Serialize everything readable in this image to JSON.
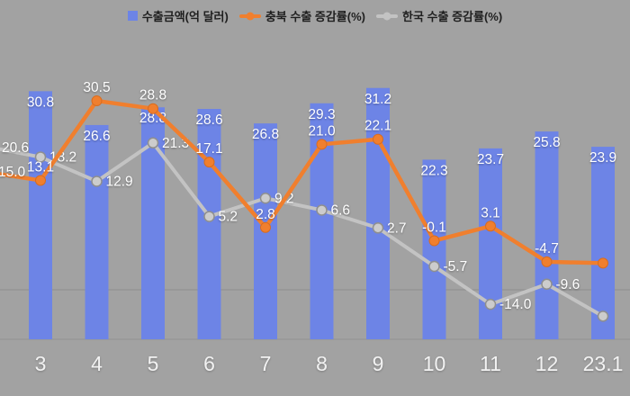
{
  "chart_data": {
    "type": "bar+line",
    "title": "",
    "categories": [
      "3",
      "4",
      "5",
      "6",
      "7",
      "8",
      "9",
      "10",
      "11",
      "12",
      "23.1"
    ],
    "bar_series": {
      "name": "수출금액(억 달러)",
      "color": "#6d84e6",
      "values": [
        30.8,
        26.6,
        28.8,
        28.6,
        26.8,
        29.3,
        31.2,
        22.3,
        23.7,
        25.8,
        23.9
      ]
    },
    "line_series": [
      {
        "name": "충북 수출 증감률(%)",
        "color": "#f07f2e",
        "values": [
          13.1,
          30.5,
          28.8,
          17.1,
          2.8,
          21.0,
          22.1,
          -0.1,
          3.1,
          -4.7,
          -5.0
        ],
        "labels": [
          "13.1",
          "30.5",
          "28.8",
          "17.1",
          "2.8",
          "21.0",
          "22.1",
          "-0.1",
          "3.1",
          "-4.7",
          ""
        ],
        "edge_left": {
          "value": 15.0,
          "label": "15.0"
        }
      },
      {
        "name": "한국 수출 증감률(%)",
        "color": "#c3c3c3",
        "marker_fill": "#cccccc",
        "marker_stroke": "#8f8f8f",
        "values": [
          18.2,
          12.9,
          21.3,
          5.2,
          9.2,
          6.6,
          2.7,
          -5.7,
          -14.0,
          -9.6,
          -16.6
        ],
        "labels": [
          "18.2",
          "12.9",
          "21.3",
          "5.2",
          "9.2",
          "6.6",
          "2.7",
          "-5.7",
          "-14.0",
          "-9.6",
          ""
        ],
        "edge_left": {
          "value": 20.6,
          "label": "20.6"
        }
      }
    ],
    "left_axis": {
      "range": [
        0,
        35
      ],
      "labels_visible": false
    },
    "right_axis": {
      "range": [
        -20,
        40
      ],
      "labels_visible": false
    },
    "grid": "single horizontal gridline visible",
    "background_color": "#a2a2a2",
    "data_label_color": "#ffffff",
    "axis_label_color": "#f2f2f2",
    "gridline_color": "#8d8d8d"
  }
}
